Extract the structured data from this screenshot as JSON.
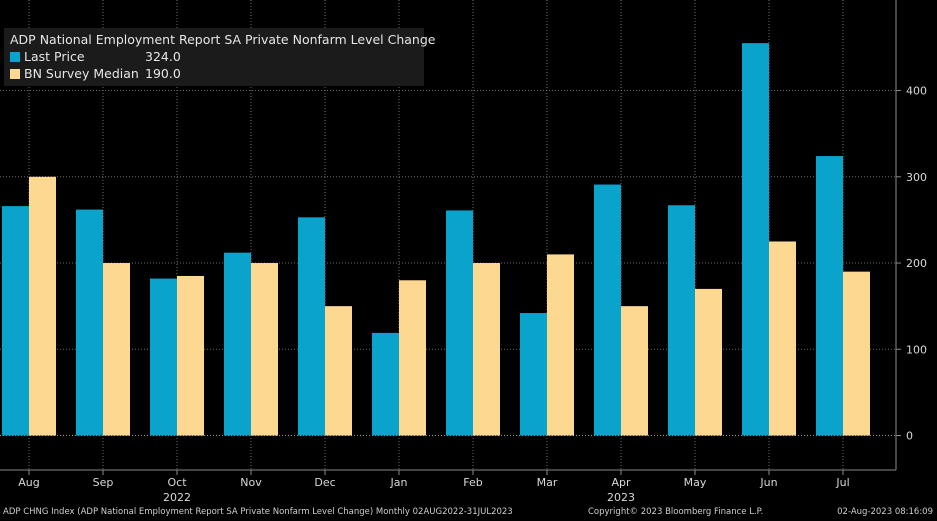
{
  "chart_data": {
    "type": "bar",
    "title": "ADP National Employment Report SA Private Nonfarm Level Change",
    "categories": [
      "Aug",
      "Sep",
      "Oct",
      "Nov",
      "Dec",
      "Jan",
      "Feb",
      "Mar",
      "Apr",
      "May",
      "Jun",
      "Jul"
    ],
    "year_labels": [
      {
        "label": "2022",
        "category": "Oct"
      },
      {
        "label": "2023",
        "category": "Apr"
      }
    ],
    "series": [
      {
        "name": "Last Price",
        "legend_value": "324.0",
        "color": "#0aa3cc",
        "values": [
          266,
          262,
          182,
          212,
          253,
          119,
          261,
          142,
          291,
          267,
          455,
          324
        ]
      },
      {
        "name": "BN Survey Median",
        "legend_value": "190.0",
        "color": "#fdd890",
        "values": [
          300,
          200,
          185,
          200,
          150,
          180,
          200,
          210,
          150,
          170,
          225,
          190
        ]
      }
    ],
    "ylim": [
      -40,
      505
    ],
    "yticks": [
      0,
      100,
      200,
      300,
      400
    ],
    "grid": true,
    "legend_position": "top-left",
    "xlabel": "",
    "ylabel": ""
  },
  "footer": {
    "left": "ADP CHNG Index (ADP National Employment Report SA Private Nonfarm Level Change)  Monthly 02AUG2022-31JUL2023",
    "center": "Copyright© 2023 Bloomberg Finance L.P.",
    "right": "02-Aug-2023 08:16:09"
  },
  "colors": {
    "background": "#000000",
    "grid": "#6e6e6e",
    "axis": "#8a8a8a"
  }
}
